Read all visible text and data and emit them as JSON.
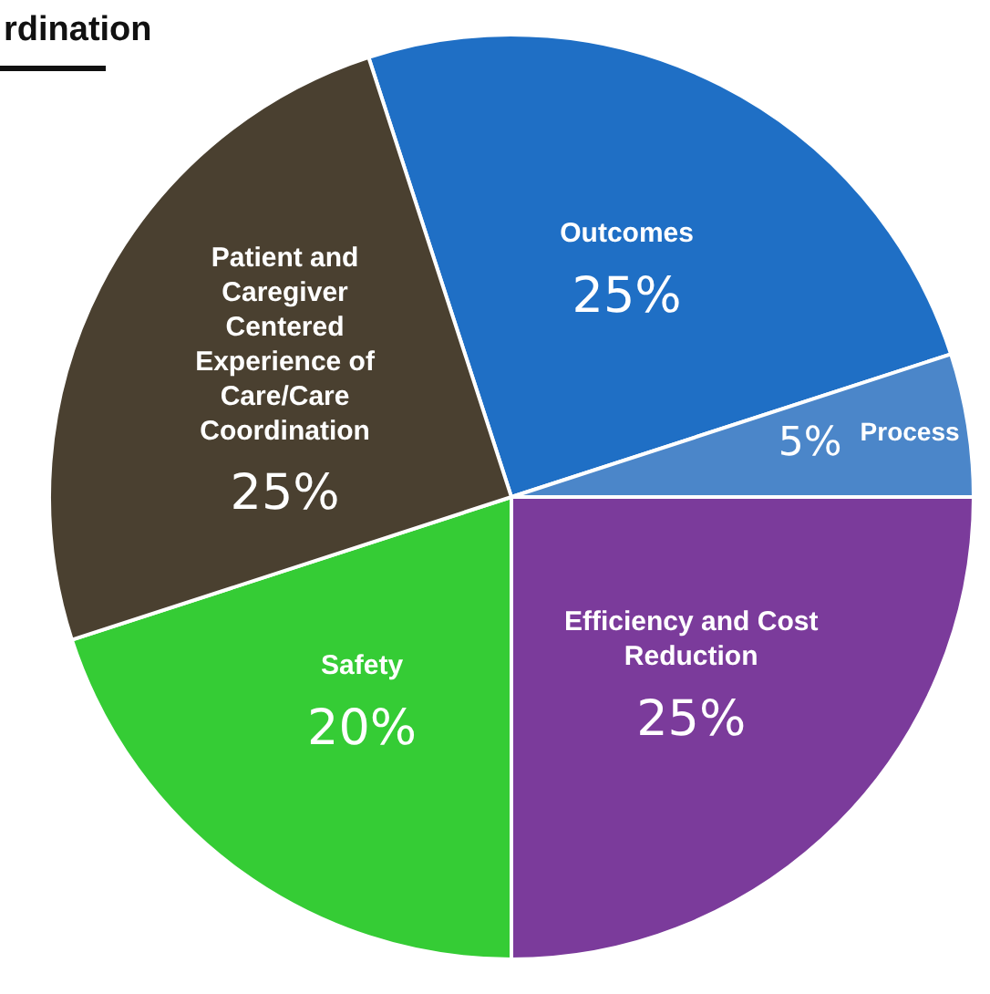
{
  "chart_data": {
    "type": "pie",
    "title": "rdination",
    "categories": [
      "Outcomes",
      "Process",
      "Efficiency and Cost Reduction",
      "Safety",
      "Patient and Caregiver Centered Experience of Care/Care Coordination"
    ],
    "values": [
      25,
      5,
      25,
      20,
      25
    ],
    "colors": [
      "#1f6fc5",
      "#4b86c9",
      "#7b3b9b",
      "#35cc35",
      "#4a4030"
    ],
    "value_labels": [
      "25%",
      "5%",
      "25%",
      "20%",
      "25%"
    ]
  }
}
